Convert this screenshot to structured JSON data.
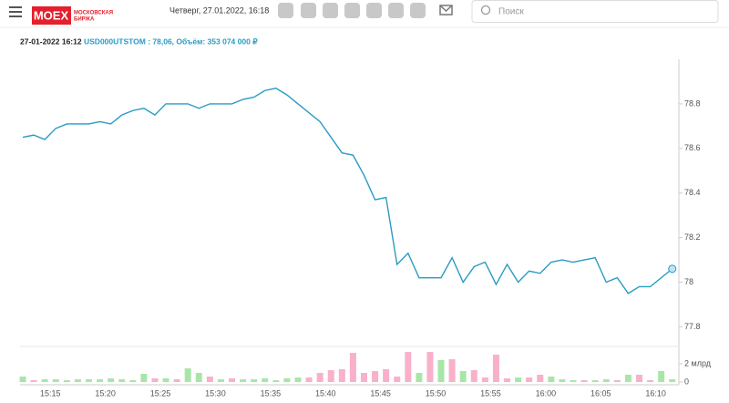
{
  "header": {
    "logo": "MOEX",
    "logo_sub1": "МОСКОВСКАЯ",
    "logo_sub2": "БИРЖА",
    "date": "Четверг, 27.01.2022, 16:18",
    "search_placeholder": "Поиск"
  },
  "info": {
    "datetime": "27-01-2022 16:12",
    "quote": "USD000UTSTOM : 78,06, Объём: 353 074 000 ₽"
  },
  "chart_data": [
    {
      "type": "line",
      "color": "#2a9bc4",
      "values": [
        78.65,
        78.66,
        78.64,
        78.69,
        78.71,
        78.71,
        78.71,
        78.72,
        78.71,
        78.75,
        78.77,
        78.78,
        78.75,
        78.8,
        78.8,
        78.8,
        78.78,
        78.8,
        78.8,
        78.8,
        78.82,
        78.83,
        78.86,
        78.87,
        78.84,
        78.8,
        78.76,
        78.72,
        78.65,
        78.58,
        78.57,
        78.48,
        78.37,
        78.38,
        78.08,
        78.13,
        78.02,
        78.02,
        78.02,
        78.11,
        78.0,
        78.07,
        78.09,
        77.99,
        78.08,
        78.0,
        78.05,
        78.04,
        78.09,
        78.1,
        78.09,
        78.1,
        78.11,
        78.0,
        78.02,
        77.95,
        77.98,
        77.98,
        78.02,
        78.06
      ],
      "ylim": [
        77.72,
        79.0
      ],
      "yticks": [
        77.8,
        78,
        78.2,
        78.4,
        78.6,
        78.8
      ]
    },
    {
      "type": "bar",
      "categories": [
        null,
        null,
        null,
        "15:15",
        null,
        null,
        null,
        null,
        "15:20",
        null,
        null,
        null,
        null,
        "15:25",
        null,
        null,
        null,
        null,
        "15:30",
        null,
        null,
        null,
        null,
        "15:35",
        null,
        null,
        null,
        null,
        "15:40",
        null,
        null,
        null,
        null,
        "15:45",
        null,
        null,
        null,
        null,
        "15:50",
        null,
        null,
        null,
        null,
        "15:55",
        null,
        null,
        null,
        null,
        "16:00",
        null,
        null,
        null,
        null,
        "16:05",
        null,
        null,
        null,
        null,
        "16:10",
        null
      ],
      "values": [
        0.6,
        0.2,
        0.3,
        0.3,
        0.2,
        0.3,
        0.3,
        0.3,
        0.4,
        0.3,
        0.2,
        0.9,
        0.4,
        0.4,
        0.3,
        1.5,
        1.0,
        0.6,
        0.3,
        0.4,
        0.3,
        0.3,
        0.4,
        0.2,
        0.4,
        0.5,
        0.5,
        1.0,
        1.3,
        1.4,
        3.2,
        1.0,
        1.2,
        1.4,
        0.6,
        3.3,
        1.0,
        3.3,
        2.4,
        2.5,
        1.2,
        1.3,
        0.5,
        3.0,
        0.4,
        0.5,
        0.5,
        0.8,
        0.6,
        0.3,
        0.2,
        0.2,
        0.2,
        0.3,
        0.2,
        0.8,
        0.8,
        0.2,
        1.2,
        0.3
      ],
      "colors": [
        "#a8e6a8",
        "#f9b0cb",
        "#a8e6a8",
        "#a8e6a8",
        "#a8e6a8",
        "#a8e6a8",
        "#a8e6a8",
        "#a8e6a8",
        "#a8e6a8",
        "#a8e6a8",
        "#a8e6a8",
        "#a8e6a8",
        "#f9b0cb",
        "#a8e6a8",
        "#f9b0cb",
        "#a8e6a8",
        "#a8e6a8",
        "#f9b0cb",
        "#a8e6a8",
        "#f9b0cb",
        "#a8e6a8",
        "#a8e6a8",
        "#a8e6a8",
        "#a8e6a8",
        "#a8e6a8",
        "#a8e6a8",
        "#f9b0cb",
        "#f9b0cb",
        "#f9b0cb",
        "#f9b0cb",
        "#f9b0cb",
        "#f9b0cb",
        "#f9b0cb",
        "#f9b0cb",
        "#f9b0cb",
        "#f9b0cb",
        "#a8e6a8",
        "#f9b0cb",
        "#a8e6a8",
        "#f9b0cb",
        "#a8e6a8",
        "#f9b0cb",
        "#f9b0cb",
        "#f9b0cb",
        "#f9b0cb",
        "#a8e6a8",
        "#f9b0cb",
        "#f9b0cb",
        "#a8e6a8",
        "#a8e6a8",
        "#a8e6a8",
        "#f9b0cb",
        "#a8e6a8",
        "#a8e6a8",
        "#f9b0cb",
        "#a8e6a8",
        "#f9b0cb",
        "#f9b0cb",
        "#a8e6a8",
        "#a8e6a8"
      ],
      "ylim": [
        0,
        3.9
      ],
      "yticks": [
        0,
        {
          "value": 2,
          "label": "2 млрд"
        }
      ]
    }
  ]
}
